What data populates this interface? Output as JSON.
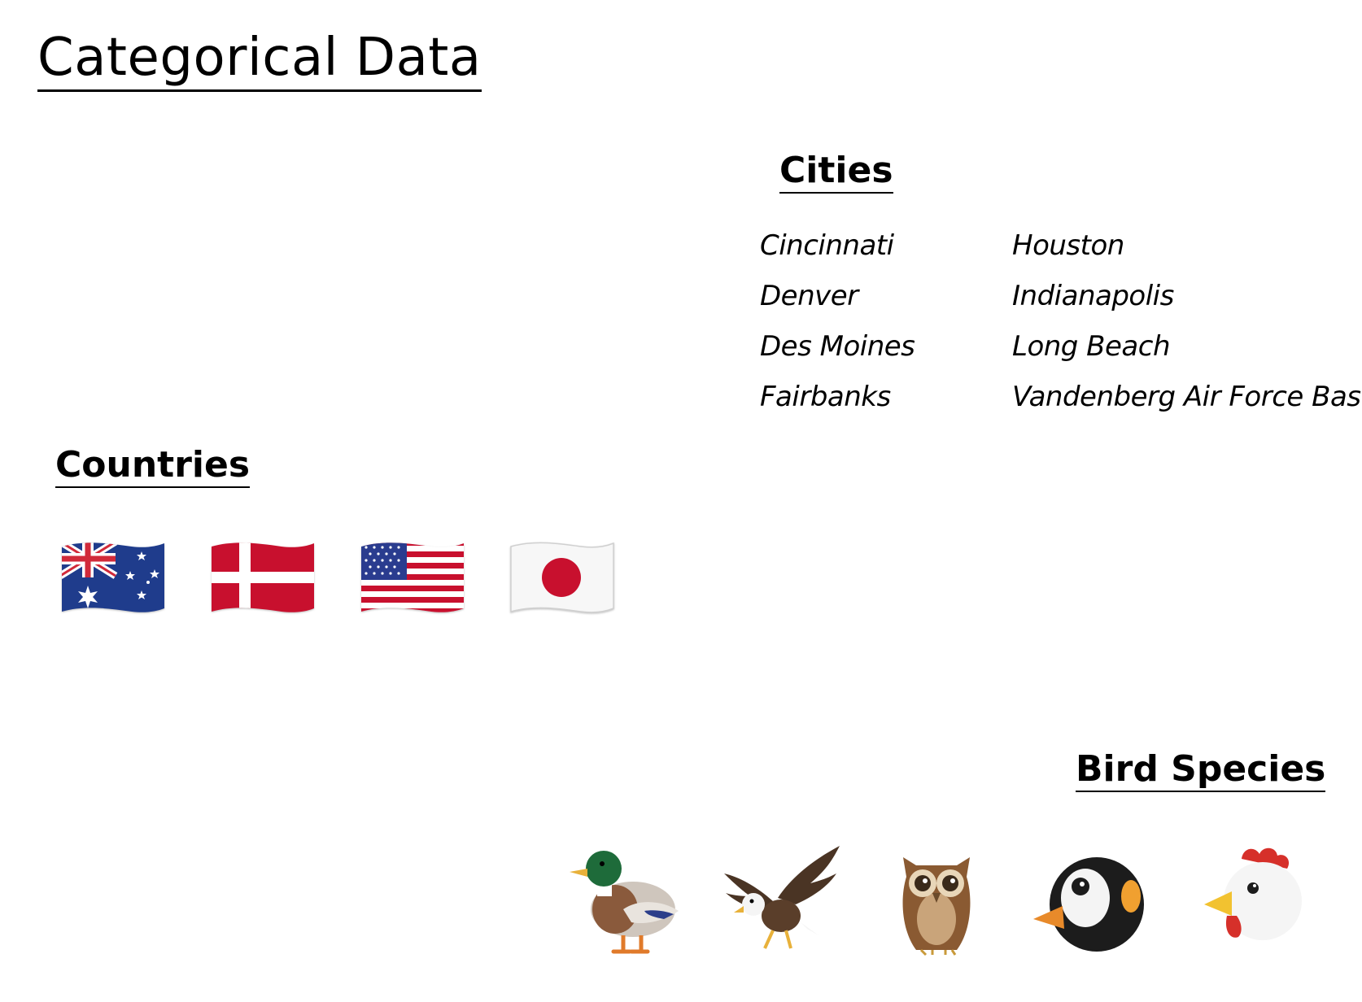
{
  "title": "Categorical Data",
  "cities": {
    "heading": "Cities",
    "items": [
      "Cincinnati",
      "Houston",
      "Denver",
      "Indianapolis",
      "Des Moines",
      "Long Beach",
      "Fairbanks",
      "Vandenberg Air Force Base"
    ]
  },
  "countries": {
    "heading": "Countries",
    "flags": [
      "australia-flag-icon",
      "denmark-flag-icon",
      "united-states-flag-icon",
      "japan-flag-icon"
    ]
  },
  "birds": {
    "heading": "Bird Species",
    "icons": [
      "duck-icon",
      "eagle-icon",
      "owl-icon",
      "penguin-icon",
      "rooster-icon"
    ]
  }
}
